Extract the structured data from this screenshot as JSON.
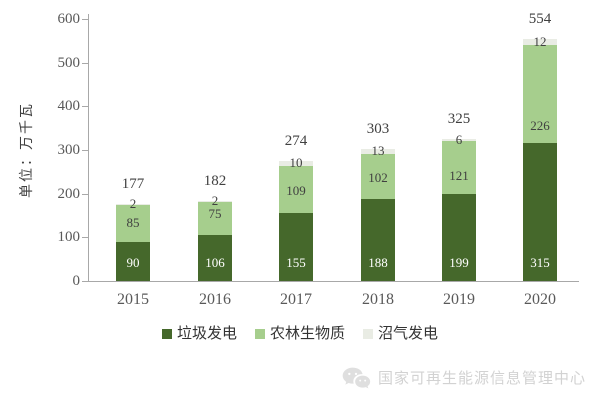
{
  "chart_data": {
    "type": "bar",
    "stacked": true,
    "ylabel": "单位：万千瓦",
    "categories": [
      "2015",
      "2016",
      "2017",
      "2018",
      "2019",
      "2020"
    ],
    "series": [
      {
        "name": "垃圾发电",
        "color": "#45682b",
        "label_color": "#ffffff",
        "values": [
          90,
          106,
          155,
          188,
          199,
          315
        ]
      },
      {
        "name": "农林生物质",
        "color": "#a6ce8d",
        "label_color": "#404040",
        "values": [
          85,
          75,
          109,
          102,
          121,
          226
        ]
      },
      {
        "name": "沼气发电",
        "color": "#e9ece4",
        "label_color": "#404040",
        "values": [
          2,
          2,
          10,
          13,
          6,
          12
        ]
      }
    ],
    "totals": [
      177,
      182,
      274,
      303,
      325,
      554
    ],
    "yticks": [
      0,
      100,
      200,
      300,
      400,
      500,
      600
    ],
    "ylim": [
      0,
      600
    ],
    "grid": false,
    "legend_position": "bottom",
    "axis_color": "#a8a8a8",
    "tick_label_color": "#595959",
    "total_label_color": "#404040",
    "middle_label_dy": [
      0,
      -4,
      2,
      1,
      8,
      32
    ]
  },
  "footer": {
    "source_label": "国家可再生能源信息管理中心",
    "icon": "wechat-icon"
  }
}
